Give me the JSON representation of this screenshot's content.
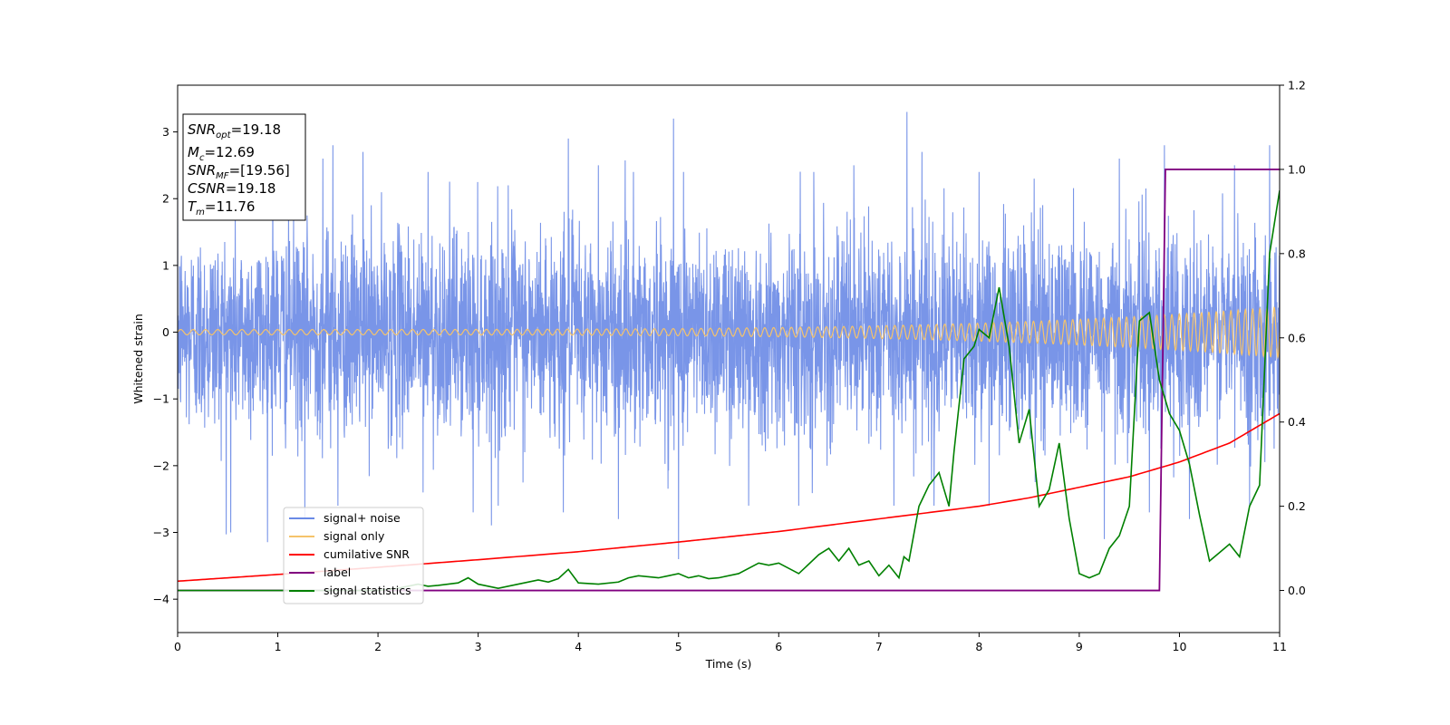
{
  "chart_data": {
    "type": "line",
    "xlabel": "Time (s)",
    "ylabel": "Whitened strain",
    "xlim": [
      0,
      11
    ],
    "ylim_left": [
      -4.5,
      3.7
    ],
    "ylim_right": [
      -0.1,
      1.2
    ],
    "x_ticks": [
      "0",
      "1",
      "2",
      "3",
      "4",
      "5",
      "6",
      "7",
      "8",
      "9",
      "10",
      "11"
    ],
    "y_ticks_left": [
      "−4",
      "−3",
      "−2",
      "−1",
      "0",
      "1",
      "2",
      "3"
    ],
    "y_ticks_right": [
      "0.0",
      "0.2",
      "0.4",
      "0.6",
      "0.8",
      "1.0",
      "1.2"
    ],
    "legend_placement": "lower-left",
    "info_box": {
      "snr_opt": "19.18",
      "mc": "12.69",
      "snr_mf": "[19.56]",
      "csnr": "19.18",
      "tm": "11.76"
    },
    "series": [
      {
        "name": "signal+ noise",
        "axis": "left",
        "color": "#6a8ae6",
        "description_type": "noise",
        "sigma": 0.75,
        "spikes": [
          [
            0.53,
            -3.0
          ],
          [
            1.27,
            -2.8
          ],
          [
            1.6,
            -2.6
          ],
          [
            2.45,
            -2.4
          ],
          [
            2.95,
            -2.7
          ],
          [
            3.2,
            -2.6
          ],
          [
            3.85,
            -2.7
          ],
          [
            3.9,
            -3.3
          ],
          [
            4.4,
            -2.8
          ],
          [
            5.0,
            -3.4
          ],
          [
            5.7,
            -2.6
          ],
          [
            6.2,
            -2.6
          ],
          [
            7.15,
            -2.6
          ],
          [
            7.55,
            -2.6
          ],
          [
            8.1,
            -2.6
          ],
          [
            9.25,
            -3.1
          ],
          [
            9.7,
            -2.7
          ],
          [
            10.1,
            -2.8
          ],
          [
            10.7,
            -2.6
          ],
          [
            0.95,
            2.4
          ],
          [
            1.45,
            2.6
          ],
          [
            1.55,
            2.8
          ],
          [
            1.85,
            2.7
          ],
          [
            2.5,
            2.4
          ],
          [
            3.3,
            2.2
          ],
          [
            3.9,
            2.9
          ],
          [
            4.2,
            2.5
          ],
          [
            4.55,
            2.4
          ],
          [
            4.95,
            3.2
          ],
          [
            5.05,
            2.4
          ],
          [
            6.35,
            2.4
          ],
          [
            6.75,
            2.5
          ],
          [
            7.28,
            3.3
          ],
          [
            7.43,
            2.7
          ],
          [
            8.0,
            2.4
          ],
          [
            8.55,
            2.3
          ],
          [
            9.4,
            2.6
          ],
          [
            9.85,
            2.8
          ],
          [
            10.55,
            2.5
          ],
          [
            10.9,
            2.8
          ]
        ]
      },
      {
        "name": "signal only",
        "axis": "left",
        "color": "#f5c36b",
        "description_type": "chirp",
        "amp_start": 0.04,
        "amp_end": 0.38,
        "freq_start": 8.0,
        "freq_end": 11.0
      },
      {
        "name": "cumilative SNR",
        "axis": "right",
        "color": "#ff0000",
        "x": [
          0,
          1,
          2,
          3,
          4,
          5,
          6,
          7,
          8,
          8.5,
          9,
          9.5,
          10,
          10.5,
          11
        ],
        "values": [
          0.022,
          0.038,
          0.055,
          0.073,
          0.092,
          0.115,
          0.14,
          0.17,
          0.2,
          0.22,
          0.245,
          0.27,
          0.305,
          0.35,
          0.42
        ]
      },
      {
        "name": "label",
        "axis": "right",
        "color": "#800080",
        "x": [
          0,
          9.8,
          9.86,
          11
        ],
        "values": [
          0,
          0,
          1,
          1
        ]
      },
      {
        "name": "signal statistics",
        "axis": "right",
        "color": "#008000",
        "x": [
          0,
          1,
          2,
          2.2,
          2.4,
          2.5,
          2.6,
          2.8,
          2.9,
          3.0,
          3.2,
          3.4,
          3.6,
          3.7,
          3.8,
          3.9,
          4.0,
          4.2,
          4.4,
          4.5,
          4.6,
          4.8,
          4.9,
          5.0,
          5.1,
          5.2,
          5.3,
          5.4,
          5.6,
          5.8,
          5.9,
          6.0,
          6.2,
          6.4,
          6.5,
          6.6,
          6.7,
          6.8,
          6.9,
          7.0,
          7.1,
          7.2,
          7.25,
          7.3,
          7.4,
          7.5,
          7.6,
          7.7,
          7.75,
          7.85,
          7.95,
          8.0,
          8.1,
          8.2,
          8.3,
          8.4,
          8.5,
          8.6,
          8.7,
          8.8,
          8.9,
          9.0,
          9.1,
          9.2,
          9.3,
          9.4,
          9.5,
          9.6,
          9.7,
          9.8,
          9.9,
          10.0,
          10.1,
          10.2,
          10.3,
          10.4,
          10.5,
          10.6,
          10.7,
          10.8,
          10.9,
          11.0
        ],
        "values": [
          0.0,
          0.0,
          0.0,
          0.005,
          0.015,
          0.01,
          0.012,
          0.018,
          0.03,
          0.015,
          0.005,
          0.015,
          0.025,
          0.02,
          0.028,
          0.05,
          0.018,
          0.015,
          0.02,
          0.03,
          0.035,
          0.03,
          0.035,
          0.04,
          0.03,
          0.035,
          0.028,
          0.03,
          0.04,
          0.065,
          0.06,
          0.065,
          0.04,
          0.085,
          0.1,
          0.07,
          0.1,
          0.06,
          0.07,
          0.035,
          0.06,
          0.03,
          0.08,
          0.07,
          0.2,
          0.25,
          0.28,
          0.2,
          0.33,
          0.55,
          0.58,
          0.62,
          0.6,
          0.72,
          0.58,
          0.35,
          0.43,
          0.2,
          0.24,
          0.35,
          0.17,
          0.04,
          0.03,
          0.04,
          0.1,
          0.13,
          0.2,
          0.64,
          0.66,
          0.5,
          0.42,
          0.38,
          0.3,
          0.18,
          0.07,
          0.09,
          0.11,
          0.08,
          0.2,
          0.25,
          0.8,
          0.95
        ]
      }
    ]
  }
}
